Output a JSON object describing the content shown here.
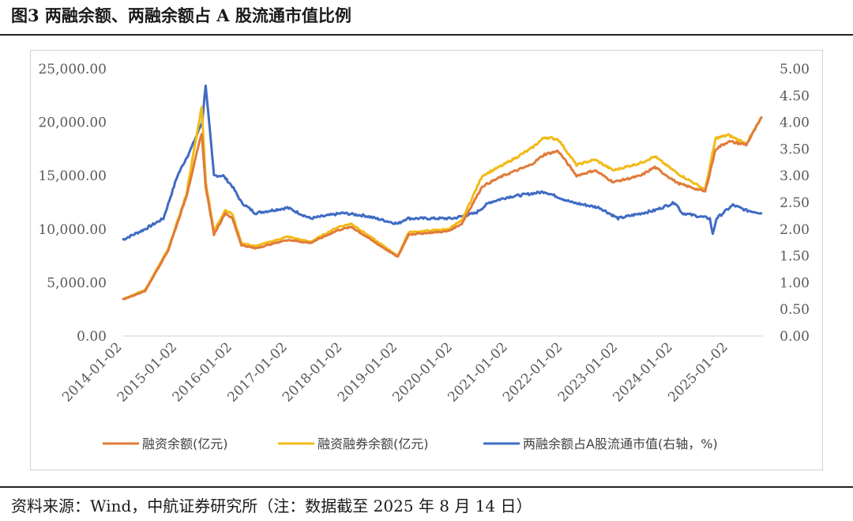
{
  "figure": {
    "title": "图3 两融余额、两融余额占 A 股流通市值比例",
    "source": "资料来源：Wind，中航证券研究所（注：数据截至 2025 年 8 月 14 日）"
  },
  "chart_data": {
    "type": "line",
    "x_tick_labels": [
      "2014-01-02",
      "2015-01-02",
      "2016-01-02",
      "2017-01-02",
      "2018-01-02",
      "2019-01-02",
      "2020-01-02",
      "2021-01-02",
      "2022-01-02",
      "2023-01-02",
      "2024-01-02",
      "2025-01-02"
    ],
    "y_left": {
      "min": 0,
      "max": 25000,
      "step": 5000,
      "tick_labels": [
        "0.00",
        "5,000.00",
        "10,000.00",
        "15,000.00",
        "20,000.00",
        "25,000.00"
      ]
    },
    "y_right": {
      "min": 0,
      "max": 5,
      "step": 0.5,
      "tick_labels": [
        "0.00",
        "0.50",
        "1.00",
        "1.50",
        "2.00",
        "2.50",
        "3.00",
        "3.50",
        "4.00",
        "4.50",
        "5.00"
      ]
    },
    "x_range": [
      "2014-01-02",
      "2025-08-14"
    ],
    "legend_position": "bottom",
    "series": [
      {
        "name": "融资余额(亿元)",
        "axis": "left",
        "color": "#E07B39",
        "points": [
          [
            "2014-01-02",
            3400
          ],
          [
            "2014-06-01",
            4200
          ],
          [
            "2014-11-01",
            8000
          ],
          [
            "2015-03-01",
            13000
          ],
          [
            "2015-06-12",
            19000
          ],
          [
            "2015-07-08",
            14000
          ],
          [
            "2015-09-01",
            9500
          ],
          [
            "2015-11-15",
            11500
          ],
          [
            "2016-01-01",
            11000
          ],
          [
            "2016-03-01",
            8500
          ],
          [
            "2016-06-01",
            8200
          ],
          [
            "2017-01-01",
            9000
          ],
          [
            "2017-06-01",
            8700
          ],
          [
            "2017-12-01",
            9900
          ],
          [
            "2018-03-01",
            10200
          ],
          [
            "2018-09-01",
            8500
          ],
          [
            "2019-01-02",
            7400
          ],
          [
            "2019-03-15",
            9500
          ],
          [
            "2019-12-01",
            9800
          ],
          [
            "2020-03-01",
            10500
          ],
          [
            "2020-07-15",
            14000
          ],
          [
            "2020-12-01",
            15000
          ],
          [
            "2021-06-01",
            16000
          ],
          [
            "2021-09-01",
            17000
          ],
          [
            "2021-12-01",
            17300
          ],
          [
            "2022-04-01",
            15000
          ],
          [
            "2022-08-01",
            15500
          ],
          [
            "2022-12-01",
            14400
          ],
          [
            "2023-06-01",
            15000
          ],
          [
            "2023-09-01",
            15800
          ],
          [
            "2024-02-01",
            14300
          ],
          [
            "2024-08-01",
            13500
          ],
          [
            "2024-10-10",
            17500
          ],
          [
            "2025-01-01",
            18200
          ],
          [
            "2025-05-01",
            17900
          ],
          [
            "2025-08-14",
            20500
          ]
        ]
      },
      {
        "name": "融资融券余额(亿元)",
        "axis": "left",
        "color": "#F2BA18",
        "points": [
          [
            "2014-01-02",
            3450
          ],
          [
            "2014-06-01",
            4300
          ],
          [
            "2014-11-01",
            8100
          ],
          [
            "2015-03-01",
            13200
          ],
          [
            "2015-06-12",
            21500
          ],
          [
            "2015-07-08",
            14500
          ],
          [
            "2015-09-01",
            9800
          ],
          [
            "2015-11-15",
            11800
          ],
          [
            "2016-01-01",
            11400
          ],
          [
            "2016-03-01",
            8700
          ],
          [
            "2016-06-01",
            8400
          ],
          [
            "2017-01-01",
            9300
          ],
          [
            "2017-06-01",
            8800
          ],
          [
            "2017-12-01",
            10200
          ],
          [
            "2018-03-01",
            10500
          ],
          [
            "2018-09-01",
            8700
          ],
          [
            "2019-01-02",
            7500
          ],
          [
            "2019-03-15",
            9700
          ],
          [
            "2019-12-01",
            10000
          ],
          [
            "2020-03-01",
            10800
          ],
          [
            "2020-07-15",
            15000
          ],
          [
            "2020-12-01",
            16000
          ],
          [
            "2021-06-01",
            17500
          ],
          [
            "2021-09-01",
            18600
          ],
          [
            "2021-12-01",
            18400
          ],
          [
            "2022-04-01",
            16000
          ],
          [
            "2022-08-01",
            16500
          ],
          [
            "2022-12-01",
            15500
          ],
          [
            "2023-06-01",
            16200
          ],
          [
            "2023-09-01",
            16800
          ],
          [
            "2024-02-01",
            15200
          ],
          [
            "2024-08-01",
            13700
          ],
          [
            "2024-10-10",
            18500
          ],
          [
            "2025-01-01",
            18800
          ],
          [
            "2025-05-01",
            18000
          ],
          [
            "2025-08-14",
            20500
          ]
        ]
      },
      {
        "name": "两融余额占A股流通市值(右轴，%)",
        "axis": "right",
        "color": "#3F6BC4",
        "points": [
          [
            "2014-01-02",
            1.8
          ],
          [
            "2014-06-01",
            2.0
          ],
          [
            "2014-10-01",
            2.2
          ],
          [
            "2015-01-02",
            3.0
          ],
          [
            "2015-04-01",
            3.5
          ],
          [
            "2015-06-15",
            4.0
          ],
          [
            "2015-07-08",
            4.7
          ],
          [
            "2015-09-01",
            3.0
          ],
          [
            "2015-11-01",
            3.0
          ],
          [
            "2016-01-01",
            2.8
          ],
          [
            "2016-03-01",
            2.5
          ],
          [
            "2016-06-01",
            2.3
          ],
          [
            "2017-01-01",
            2.4
          ],
          [
            "2017-06-01",
            2.2
          ],
          [
            "2018-01-01",
            2.3
          ],
          [
            "2018-06-01",
            2.25
          ],
          [
            "2019-01-02",
            2.1
          ],
          [
            "2019-03-01",
            2.2
          ],
          [
            "2020-01-01",
            2.2
          ],
          [
            "2020-06-01",
            2.3
          ],
          [
            "2020-09-01",
            2.5
          ],
          [
            "2021-01-01",
            2.6
          ],
          [
            "2021-09-01",
            2.7
          ],
          [
            "2022-03-01",
            2.5
          ],
          [
            "2022-09-01",
            2.4
          ],
          [
            "2023-01-01",
            2.2
          ],
          [
            "2023-09-01",
            2.35
          ],
          [
            "2024-01-15",
            2.5
          ],
          [
            "2024-03-01",
            2.3
          ],
          [
            "2024-09-01",
            2.2
          ],
          [
            "2024-09-20",
            1.9
          ],
          [
            "2024-10-15",
            2.2
          ],
          [
            "2025-02-01",
            2.45
          ],
          [
            "2025-05-01",
            2.35
          ],
          [
            "2025-08-14",
            2.3
          ]
        ]
      }
    ]
  }
}
